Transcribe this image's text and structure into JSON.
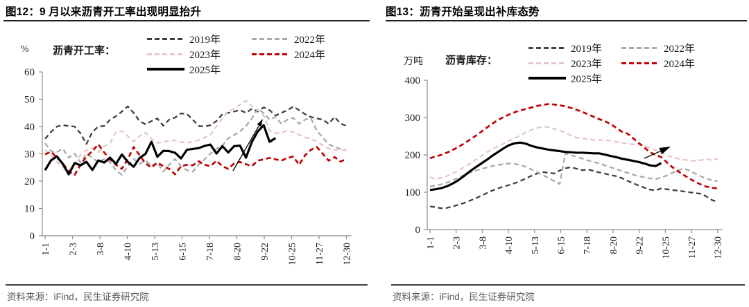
{
  "panels": [
    {
      "title": "图12：9 月以来沥青开工率出现明显抬升",
      "source": "资料来源：iFind，民生证券研究院"
    },
    {
      "title": "图13：沥青开始呈现出补库态势",
      "source": "资料来源：iFind，民生证券研究院"
    }
  ],
  "colors": {
    "y2019": "#3f3f3f",
    "y2022": "#a9a9a9",
    "y2023": "#e7c6c5",
    "y2024": "#c00000",
    "y2025": "#000000",
    "axis": "#8c8c8c"
  },
  "chart_data": [
    {
      "type": "line",
      "title": "沥青开工率",
      "unit": "%",
      "series_label": "沥青开工率：",
      "x_tick_labels": [
        "1-1",
        "2-3",
        "3-8",
        "4-10",
        "5-13",
        "6-15",
        "7-18",
        "8-20",
        "9-22",
        "10-25",
        "11-27",
        "12-30"
      ],
      "ylim": [
        0,
        60
      ],
      "y_ticks": [
        60,
        50,
        40,
        30,
        20,
        10,
        0
      ],
      "grid": false,
      "legend_columns": [
        [
          "2019年",
          "2023年",
          "2025年"
        ],
        [
          "2022年",
          "2024年"
        ]
      ],
      "series": [
        {
          "name": "2019年",
          "color": "#3f3f3f",
          "style": "dashed",
          "width": 2.3,
          "values": [
            35.5,
            38,
            40,
            40.5,
            40.2,
            40,
            37.5,
            33.6,
            38,
            40,
            40.2,
            42.5,
            43.8,
            45.5,
            47.4,
            45,
            42,
            40.8,
            42,
            43,
            40.3,
            42.5,
            43.3,
            44.8,
            44.6,
            42.5,
            40.2,
            40,
            40.5,
            42,
            44.5,
            45,
            45.5,
            46,
            45,
            46.5,
            45.5,
            47,
            46,
            44,
            45,
            46,
            47.3,
            46,
            44.5,
            43.5,
            43,
            42.5,
            41,
            43.5,
            41,
            40.3
          ]
        },
        {
          "name": "2022年",
          "color": "#a9a9a9",
          "style": "dashed",
          "width": 2.3,
          "values": [
            33.9,
            31,
            30.6,
            31.9,
            28.6,
            30.1,
            26.8,
            30.1,
            28.6,
            26.8,
            28.1,
            27,
            24,
            22.3,
            25.6,
            28.1,
            26.3,
            27.6,
            25.6,
            26.8,
            23.5,
            26,
            28.1,
            25.5,
            24,
            23.5,
            26,
            28,
            30.1,
            31.9,
            33,
            35.7,
            36.9,
            38.2,
            40.2,
            43,
            46.5,
            45,
            42.5,
            43.5,
            41,
            42.5,
            43.2,
            41,
            42.5,
            43,
            38.5,
            36,
            33.5,
            32.5,
            31.8,
            31.3
          ]
        },
        {
          "name": "2023年",
          "color": "#e7c6c5",
          "style": "dashed",
          "width": 2.3,
          "values": [
            31.4,
            29.6,
            27.1,
            25.1,
            23.8,
            26.3,
            29.6,
            31.4,
            32.1,
            30.6,
            32.6,
            33.9,
            38,
            38.3,
            36.5,
            34.5,
            36.5,
            37.8,
            35.5,
            34,
            34.3,
            34.8,
            35,
            34.3,
            34,
            34.5,
            35,
            36,
            37,
            40,
            43,
            45.5,
            46.5,
            48,
            49.5,
            47.5,
            46,
            44,
            38.5,
            37.5,
            37.8,
            38.5,
            38,
            37,
            36,
            35.5,
            34.5,
            33,
            32,
            31.5,
            31.3,
            31.3
          ]
        },
        {
          "name": "2024年",
          "color": "#c00000",
          "style": "dashed",
          "width": 2.7,
          "values": [
            29.8,
            30.8,
            28.6,
            26.5,
            23.5,
            22.3,
            26,
            29,
            31,
            33.5,
            30.5,
            28,
            26,
            24.5,
            28.1,
            32.5,
            29.5,
            26.5,
            25,
            26.8,
            25.5,
            24.5,
            22.5,
            25.5,
            26,
            25.8,
            27.3,
            26,
            25.5,
            27.5,
            25.5,
            24.5,
            26.5,
            27,
            26.2,
            25.5,
            27.5,
            28,
            28.5,
            28,
            27.5,
            28.5,
            29,
            26,
            29.5,
            31.5,
            32.5,
            30,
            27.5,
            28.8,
            27.2,
            28.1
          ]
        },
        {
          "name": "2025年",
          "color": "#000000",
          "style": "solid",
          "width": 3.2,
          "values": [
            24,
            27.6,
            29.1,
            26.3,
            22.5,
            26.6,
            25.8,
            27.1,
            24.1,
            27.6,
            26.8,
            28.6,
            26.3,
            29.8,
            27,
            25.3,
            28.5,
            30,
            34.4,
            28.9,
            31.1,
            31,
            30.4,
            28.3,
            31.5,
            31.8,
            32.1,
            32.9,
            33.4,
            30.1,
            32.8,
            30.5,
            32.8,
            33,
            28.6,
            34.4,
            38.2,
            40.5,
            34.4,
            35.8
          ]
        }
      ],
      "annotation_arrow": {
        "x1": 336,
        "y1": 247,
        "x2": 379,
        "y2": 172,
        "head": 11
      }
    },
    {
      "type": "line",
      "title": "沥青库存",
      "unit": "万吨",
      "series_label": "沥青库存：",
      "x_tick_labels": [
        "1-1",
        "2-3",
        "3-8",
        "4-10",
        "5-13",
        "6-15",
        "7-18",
        "8-20",
        "9-22",
        "10-25",
        "11-27",
        "12-30"
      ],
      "ylim": [
        0,
        400
      ],
      "y_ticks": [
        400,
        300,
        200,
        100,
        0
      ],
      "grid": false,
      "legend_columns": [
        [
          "2019年",
          "2023年",
          "2025年"
        ],
        [
          "2022年",
          "2024年"
        ]
      ],
      "series": [
        {
          "name": "2019年",
          "color": "#3f3f3f",
          "style": "dashed",
          "width": 2.3,
          "values": [
            62,
            60,
            57,
            58,
            62,
            66,
            71,
            77,
            83,
            90,
            97,
            104,
            110,
            115,
            119,
            124,
            130,
            137,
            144,
            150,
            154,
            152,
            150,
            158,
            164,
            167,
            163,
            159,
            161,
            157,
            153,
            150,
            146,
            143,
            138,
            131,
            124,
            118,
            112,
            107,
            105,
            110,
            108,
            106,
            104,
            102,
            100,
            98,
            96,
            89,
            79,
            74
          ]
        },
        {
          "name": "2022年",
          "color": "#a9a9a9",
          "style": "dashed",
          "width": 2.3,
          "values": [
            115,
            118,
            121,
            126,
            132,
            139,
            146,
            152,
            157,
            162,
            166,
            170,
            173,
            175,
            177,
            176,
            173,
            168,
            161,
            154,
            146,
            138,
            130,
            122,
            204,
            199,
            195,
            190,
            185,
            181,
            177,
            172,
            167,
            162,
            157,
            152,
            147,
            143,
            140,
            137,
            135,
            139,
            145,
            152,
            158,
            164,
            158,
            150,
            143,
            137,
            132,
            129
          ]
        },
        {
          "name": "2023年",
          "color": "#e7c6c5",
          "style": "dashed",
          "width": 2.3,
          "values": [
            140,
            136,
            138,
            143,
            150,
            158,
            167,
            176,
            186,
            196,
            206,
            215,
            222,
            230,
            238,
            245,
            252,
            260,
            267,
            272,
            276,
            274,
            270,
            265,
            259,
            252,
            246,
            244,
            242,
            240,
            240,
            239,
            238,
            235,
            233,
            230,
            228,
            227,
            225,
            219,
            212,
            206,
            199,
            194,
            190,
            187,
            185,
            184,
            186,
            189,
            186,
            190
          ]
        },
        {
          "name": "2024年",
          "color": "#c00000",
          "style": "dashed",
          "width": 2.7,
          "values": [
            191,
            196,
            200,
            206,
            213,
            221,
            230,
            240,
            250,
            261,
            272,
            283,
            293,
            301,
            308,
            314,
            319,
            323,
            327,
            331,
            334,
            336,
            335,
            333,
            330,
            326,
            321,
            315,
            309,
            302,
            296,
            290,
            283,
            273,
            262,
            257,
            245,
            232,
            220,
            207,
            200,
            194,
            180,
            167,
            156,
            146,
            137,
            128,
            121,
            115,
            112,
            110
          ]
        },
        {
          "name": "2025年",
          "color": "#000000",
          "style": "solid",
          "width": 3.2,
          "values": [
            106,
            108,
            111,
            116,
            123,
            132,
            143,
            155,
            166,
            176,
            186,
            197,
            207,
            217,
            226,
            231,
            233,
            230,
            224,
            220,
            217,
            214,
            212,
            210,
            208,
            207,
            206,
            206,
            205,
            204,
            204,
            201,
            197,
            194,
            190,
            187,
            184,
            181,
            177,
            172,
            170,
            178
          ]
        }
      ],
      "annotation_arrow": {
        "x1": 389,
        "y1": 229,
        "x2": 427,
        "y2": 212,
        "head": 16
      }
    }
  ]
}
